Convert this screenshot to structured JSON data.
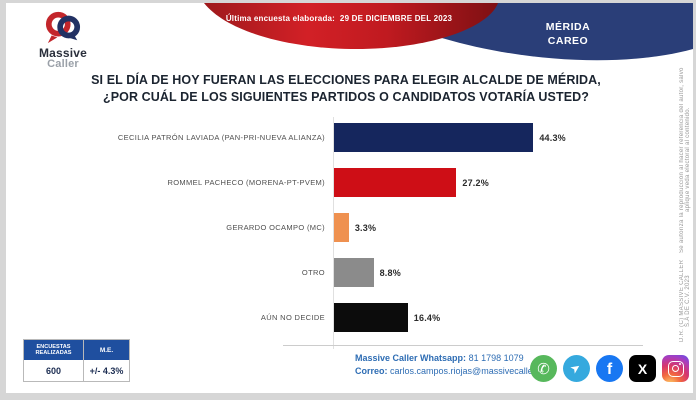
{
  "brand": {
    "logo_line1": "Massive",
    "logo_line2": "Caller"
  },
  "header": {
    "survey_date_label": "Última encuesta elaborada:",
    "survey_date_value": "29 DE DICIEMBRE DEL 2023",
    "badge_line1": "MÉRIDA",
    "badge_line2": "CAREO"
  },
  "title": {
    "line1": "SI EL DÍA DE HOY FUERAN LAS ELECCIONES PARA ELEGIR ALCALDE DE MÉRIDA,",
    "line2": "¿POR CUÁL DE LOS SIGUIENTES PARTIDOS O CANDIDATOS VOTARÍA USTED?"
  },
  "chart_data": {
    "type": "bar",
    "orientation": "horizontal",
    "title": "SI EL DÍA DE HOY FUERAN LAS ELECCIONES PARA ELEGIR ALCALDE DE MÉRIDA, ¿POR CUÁL DE LOS SIGUIENTES PARTIDOS O CANDIDATOS VOTARÍA USTED?",
    "categories": [
      "CECILIA PATRÓN LAVIADA (PAN-PRI-NUEVA ALIANZA)",
      "ROMMEL PACHECO (MORENA-PT-PVEM)",
      "GERARDO OCAMPO (MC)",
      "OTRO",
      "AÚN NO DECIDE"
    ],
    "values": [
      44.3,
      27.2,
      3.3,
      8.8,
      16.4
    ],
    "value_labels": [
      "44.3%",
      "27.2%",
      "3.3%",
      "8.8%",
      "16.4%"
    ],
    "bar_colors": [
      "#15265d",
      "#ce0e16",
      "#ef9150",
      "#8b8b8b",
      "#0c0c0c"
    ],
    "xlim": [
      0,
      50
    ],
    "grid": false,
    "legend": false
  },
  "stats_table": {
    "header_col1": "ENCUESTAS REALIZADAS",
    "header_col2": "M.E.",
    "value_col1": "600",
    "value_col2": "+/- 4.3%"
  },
  "contact": {
    "whatsapp_label": "Massive Caller Whatsapp:",
    "whatsapp_value": "81 1798 1079",
    "email_label": "Correo:",
    "email_value": "carlos.campos.riojas@massivecaller.com"
  },
  "social": {
    "whatsapp_glyph": "✆",
    "telegram_glyph": "➤",
    "facebook_glyph": "f",
    "x_glyph": "X"
  },
  "legal": {
    "line1": "D.R.  (C) MASSIVE CALLER S.A DE C.V.  2023",
    "line2": "Se autoriza la reproducción al hacer referencia del autor, salvo aplique veda electoral al contenido."
  },
  "colors": {
    "banner_red": "#cf1d24",
    "banner_blue": "#2a3e78",
    "table_header_blue": "#1f4f9f",
    "contact_blue": "#2e6db4"
  }
}
